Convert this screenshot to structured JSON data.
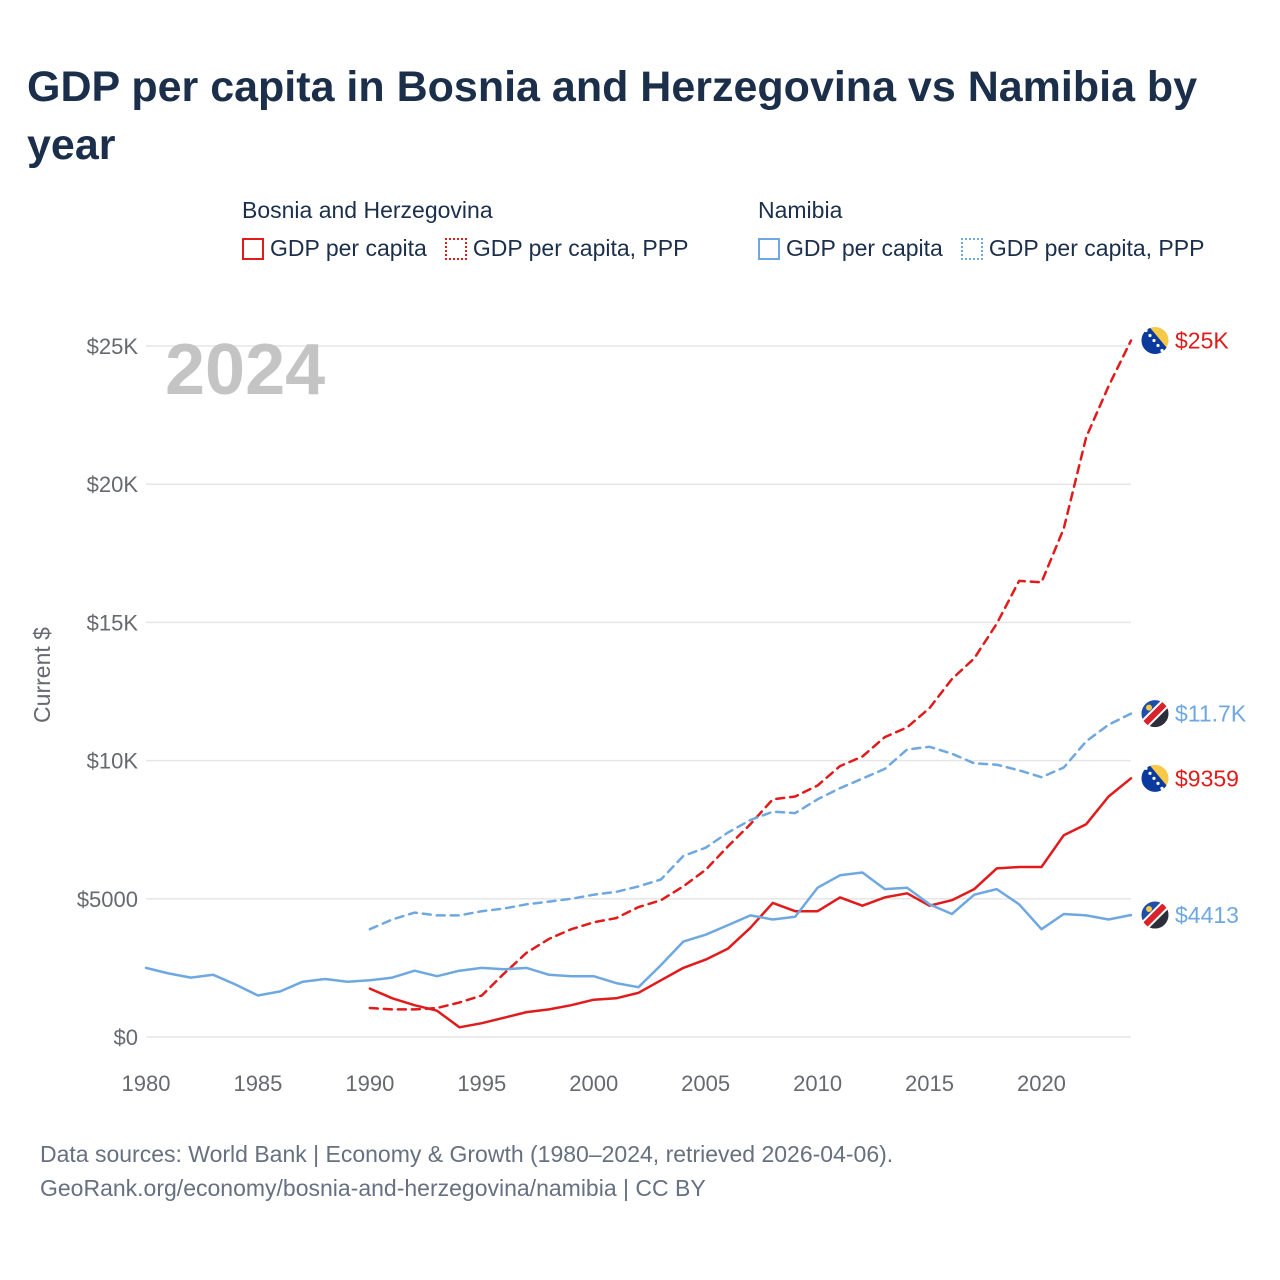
{
  "title": "GDP per capita in Bosnia and Herzegovina vs Namibia by year",
  "legend": {
    "groups": [
      {
        "name": "Bosnia and Herzegovina",
        "items": [
          {
            "label": "GDP per capita",
            "style": "solid",
            "color": "#e01b1b"
          },
          {
            "label": "GDP per capita, PPP",
            "style": "dotted",
            "color": "#e01b1b"
          }
        ]
      },
      {
        "name": "Namibia",
        "items": [
          {
            "label": "GDP per capita",
            "style": "solid",
            "color": "#6fa8e0"
          },
          {
            "label": "GDP per capita, PPP",
            "style": "dotted",
            "color": "#6fa8e0"
          }
        ]
      }
    ]
  },
  "footer": {
    "line1": "Data sources: World Bank | Economy & Growth (1980–2024, retrieved 2026-04-06).",
    "line2": "GeoRank.org/economy/bosnia-and-herzegovina/namibia | CC BY"
  },
  "chart_data": {
    "type": "line",
    "title": "GDP per capita in Bosnia and Herzegovina vs Namibia by year",
    "xlabel": "",
    "ylabel": "Current $",
    "xlim": [
      1980,
      2024
    ],
    "ylim": [
      0,
      25000
    ],
    "x_ticks": [
      1980,
      1985,
      1990,
      1995,
      2000,
      2005,
      2010,
      2015,
      2020
    ],
    "y_ticks": [
      0,
      5000,
      10000,
      15000,
      20000,
      25000
    ],
    "y_tick_labels": [
      "$0",
      "$5000",
      "$10K",
      "$15K",
      "$20K",
      "$25K"
    ],
    "year_label": "2024",
    "grid": true,
    "series": [
      {
        "name": "Bosnia and Herzegovina — GDP per capita",
        "country": "bosnia",
        "color": "#e01b1b",
        "dash": "solid",
        "end_label": "$9359",
        "x": [
          1990,
          1991,
          1992,
          1993,
          1994,
          1995,
          1996,
          1997,
          1998,
          1999,
          2000,
          2001,
          2002,
          2003,
          2004,
          2005,
          2006,
          2007,
          2008,
          2009,
          2010,
          2011,
          2012,
          2013,
          2014,
          2015,
          2016,
          2017,
          2018,
          2019,
          2020,
          2021,
          2022,
          2023,
          2024
        ],
        "y": [
          1750,
          1400,
          1150,
          950,
          350,
          500,
          700,
          900,
          1000,
          1150,
          1350,
          1400,
          1600,
          2050,
          2500,
          2800,
          3200,
          3950,
          4850,
          4550,
          4550,
          5050,
          4750,
          5050,
          5200,
          4750,
          4950,
          5350,
          6100,
          6150,
          6150,
          7300,
          7700,
          8700,
          9359
        ]
      },
      {
        "name": "Bosnia and Herzegovina — GDP per capita, PPP",
        "country": "bosnia",
        "color": "#e01b1b",
        "dash": "dashed",
        "end_label": "$25K",
        "x": [
          1990,
          1991,
          1992,
          1993,
          1994,
          1995,
          1996,
          1997,
          1998,
          1999,
          2000,
          2001,
          2002,
          2003,
          2004,
          2005,
          2006,
          2007,
          2008,
          2009,
          2010,
          2011,
          2012,
          2013,
          2014,
          2015,
          2016,
          2017,
          2018,
          2019,
          2020,
          2021,
          2022,
          2023,
          2024
        ],
        "y": [
          1050,
          1000,
          1000,
          1050,
          1250,
          1500,
          2300,
          3050,
          3550,
          3900,
          4150,
          4300,
          4700,
          4950,
          5450,
          6050,
          6900,
          7700,
          8600,
          8700,
          9100,
          9800,
          10150,
          10850,
          11200,
          11900,
          12950,
          13700,
          14950,
          16500,
          16450,
          18400,
          21700,
          23550,
          25200
        ]
      },
      {
        "name": "Namibia — GDP per capita",
        "country": "namibia",
        "color": "#6fa8e0",
        "dash": "solid",
        "end_label": "$4413",
        "x": [
          1980,
          1981,
          1982,
          1983,
          1984,
          1985,
          1986,
          1987,
          1988,
          1989,
          1990,
          1991,
          1992,
          1993,
          1994,
          1995,
          1996,
          1997,
          1998,
          1999,
          2000,
          2001,
          2002,
          2003,
          2004,
          2005,
          2006,
          2007,
          2008,
          2009,
          2010,
          2011,
          2012,
          2013,
          2014,
          2015,
          2016,
          2017,
          2018,
          2019,
          2020,
          2021,
          2022,
          2023,
          2024
        ],
        "y": [
          2500,
          2300,
          2150,
          2250,
          1900,
          1500,
          1650,
          2000,
          2100,
          2000,
          2050,
          2150,
          2400,
          2200,
          2400,
          2500,
          2450,
          2500,
          2250,
          2200,
          2200,
          1950,
          1800,
          2600,
          3450,
          3700,
          4050,
          4400,
          4250,
          4350,
          5400,
          5850,
          5950,
          5350,
          5400,
          4800,
          4450,
          5150,
          5350,
          4800,
          3900,
          4450,
          4400,
          4250,
          4413
        ]
      },
      {
        "name": "Namibia — GDP per capita, PPP",
        "country": "namibia",
        "color": "#6fa8e0",
        "dash": "dashed",
        "end_label": "$11.7K",
        "x": [
          1990,
          1991,
          1992,
          1993,
          1994,
          1995,
          1996,
          1997,
          1998,
          1999,
          2000,
          2001,
          2002,
          2003,
          2004,
          2005,
          2006,
          2007,
          2008,
          2009,
          2010,
          2011,
          2012,
          2013,
          2014,
          2015,
          2016,
          2017,
          2018,
          2019,
          2020,
          2021,
          2022,
          2023,
          2024
        ],
        "y": [
          3900,
          4250,
          4500,
          4400,
          4400,
          4550,
          4650,
          4800,
          4900,
          5000,
          5150,
          5250,
          5450,
          5700,
          6550,
          6850,
          7400,
          7850,
          8150,
          8100,
          8600,
          9000,
          9350,
          9700,
          10400,
          10500,
          10250,
          9900,
          9850,
          9650,
          9400,
          9750,
          10700,
          11300,
          11700
        ]
      }
    ]
  }
}
